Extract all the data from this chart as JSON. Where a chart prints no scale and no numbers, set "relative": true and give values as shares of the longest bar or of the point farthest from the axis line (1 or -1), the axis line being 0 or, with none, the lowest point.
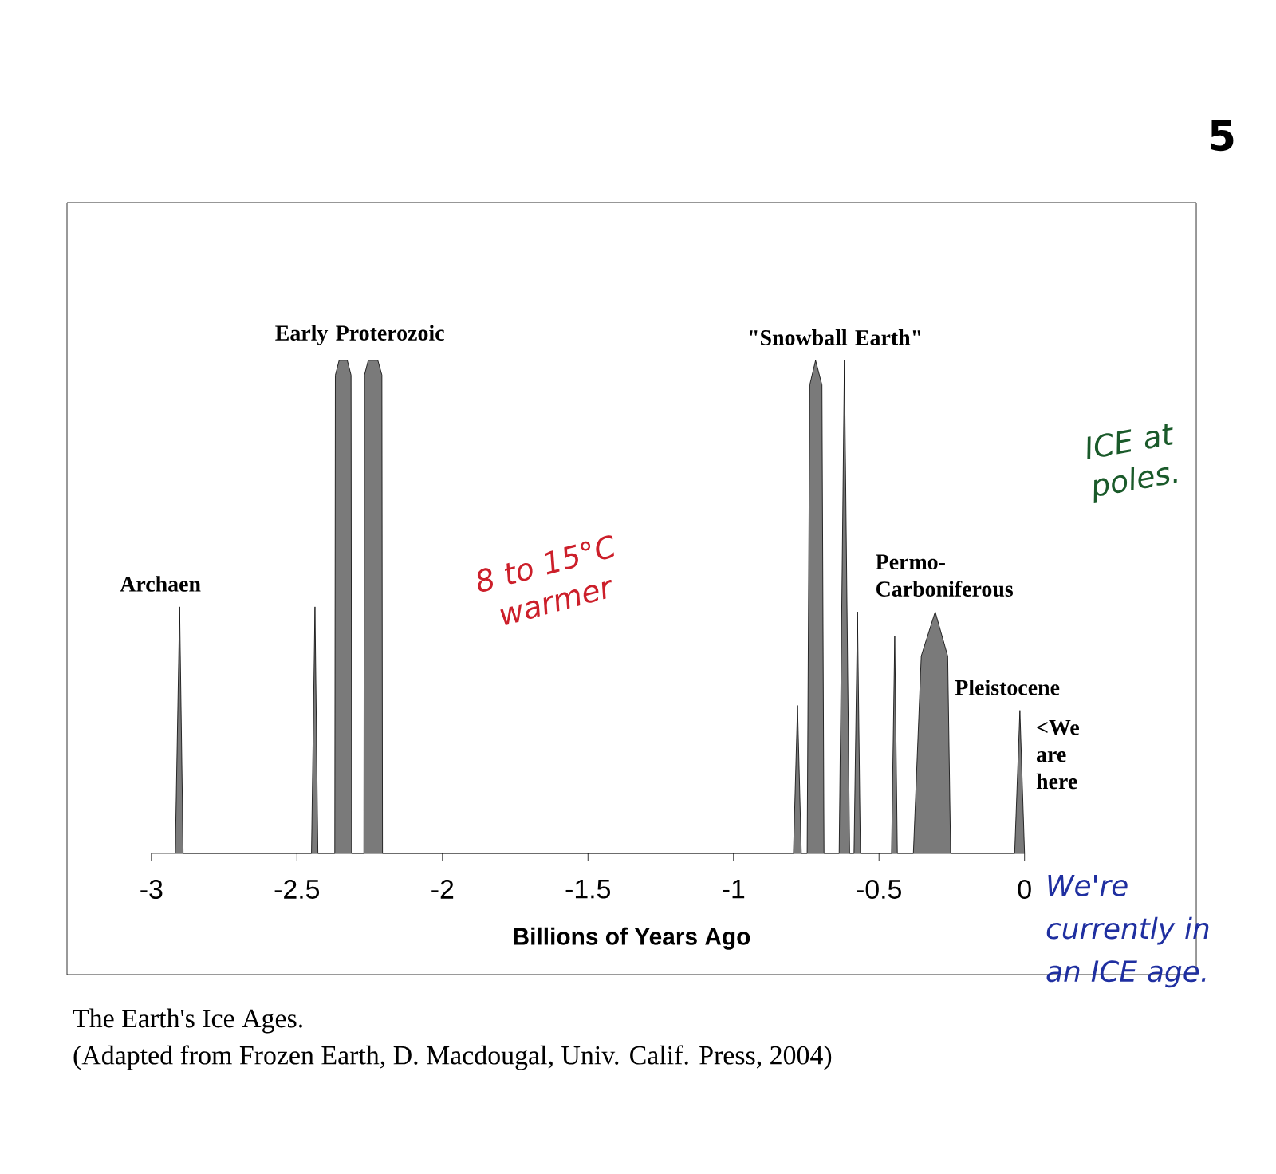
{
  "chart_data": {
    "type": "area",
    "relative": true,
    "xlabel": "Billions of Years Ago",
    "xlim": [
      -3.29,
      0.59
    ],
    "xticks": [
      -3,
      -2.5,
      -2,
      -1.5,
      -1,
      -0.5,
      0
    ],
    "series": [
      {
        "color": "#7a7a7a",
        "x": [
          -2.918,
          -2.903,
          -2.891,
          -2.45,
          -2.438,
          -2.428,
          -2.37,
          -2.368,
          -2.355,
          -2.327,
          -2.314,
          -2.312,
          -2.27,
          -2.268,
          -2.255,
          -2.222,
          -2.208,
          -2.206,
          -0.794,
          -0.78,
          -0.767,
          -0.747,
          -0.738,
          -0.718,
          -0.696,
          -0.689,
          -0.637,
          -0.619,
          -0.601,
          -0.586,
          -0.574,
          -0.564,
          -0.457,
          -0.446,
          -0.437,
          -0.382,
          -0.355,
          -0.307,
          -0.264,
          -0.254,
          -0.034,
          -0.016,
          0.0
        ],
        "values": [
          0,
          0.5,
          0,
          0,
          0.5,
          0,
          0,
          0.97,
          1,
          1,
          0.97,
          0,
          0,
          0.97,
          1,
          1,
          0.97,
          0,
          0,
          0.3,
          0,
          0,
          0.95,
          1,
          0.95,
          0,
          0,
          1,
          0,
          0,
          0.49,
          0,
          0,
          0.44,
          0,
          0,
          0.4,
          0.49,
          0.4,
          0,
          0,
          0.29,
          0
        ]
      }
    ],
    "annotations": [
      {
        "text": "Archaen",
        "x": -2.903,
        "y": 0.5
      },
      {
        "text": "Early Proterozoic",
        "x": -2.37,
        "y": 1
      },
      {
        "text": "\"Snowball Earth\"",
        "x": -0.747,
        "y": 1
      },
      {
        "text": "Permo- Carboniferous",
        "x": -0.307,
        "y": 0.49
      },
      {
        "text": "Pleistocene",
        "x": -0.034,
        "y": 0.29
      },
      "<We are here",
      "5",
      "8 to 15°C warmer",
      "ICE at poles.",
      "We're currently in an ICE age.",
      "The Earth's Ice Ages.",
      "(Adapted from Frozen Earth, D. Macdougal, Univ. Calif. Press, 2004)"
    ]
  }
}
